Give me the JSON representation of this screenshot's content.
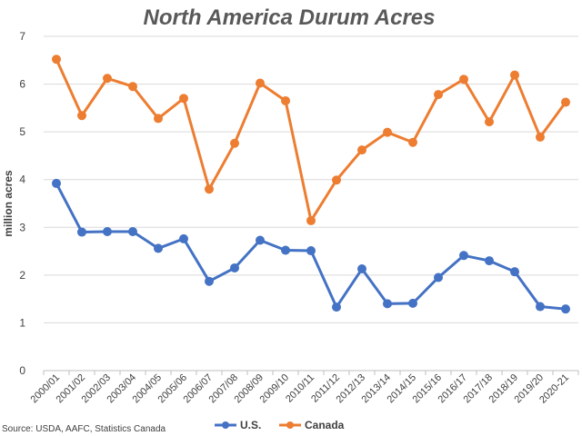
{
  "chart_data": {
    "type": "line",
    "title": "North America Durum Acres",
    "xlabel": "",
    "ylabel": "million acres",
    "ylim": [
      0,
      7
    ],
    "yticks": [
      0,
      1,
      2,
      3,
      4,
      5,
      6,
      7
    ],
    "grid": "horizontal",
    "legend_position": "bottom",
    "source": "Source: USDA, AAFC, Statistics Canada",
    "categories": [
      "2000/01",
      "2001/02",
      "2002/03",
      "2003/04",
      "2004/05",
      "2005/06",
      "2006/07",
      "2007/08",
      "2008/09",
      "2009/10",
      "2010/11",
      "2011/12",
      "2012/13",
      "2013/14",
      "2014/15",
      "2015/16",
      "2016/17",
      "2017/18",
      "2018/19",
      "2019/20",
      "2020-21"
    ],
    "series": [
      {
        "name": "U.S.",
        "color": "#4472c4",
        "values": [
          3.92,
          2.9,
          2.91,
          2.91,
          2.56,
          2.76,
          1.87,
          2.15,
          2.73,
          2.52,
          2.51,
          1.33,
          2.13,
          1.4,
          1.41,
          1.95,
          2.41,
          2.3,
          2.07,
          1.34,
          1.29
        ]
      },
      {
        "name": "Canada",
        "color": "#ed7d31",
        "values": [
          6.52,
          5.34,
          6.12,
          5.95,
          5.28,
          5.7,
          3.8,
          4.76,
          6.02,
          5.65,
          3.14,
          3.99,
          4.62,
          4.99,
          4.78,
          5.78,
          6.1,
          5.21,
          6.19,
          4.89,
          5.62
        ]
      }
    ]
  }
}
